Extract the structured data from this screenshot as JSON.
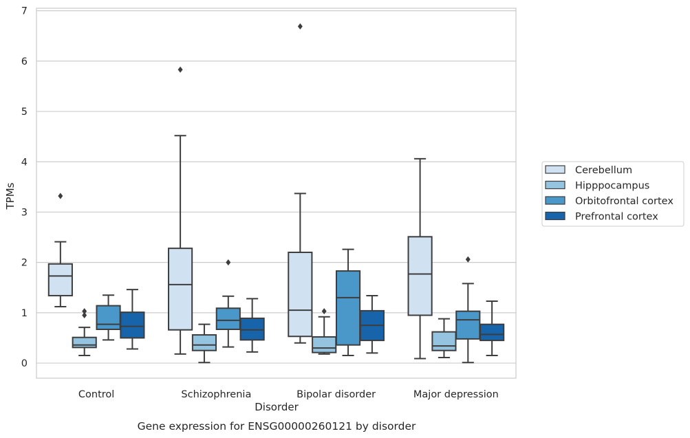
{
  "chart_data": {
    "type": "box",
    "title": "",
    "caption": "Gene expression for ENSG00000260121 by disorder",
    "xlabel": "Disorder",
    "ylabel": "TPMs",
    "ylim": [
      -0.3,
      7.05
    ],
    "yticks": [
      0,
      1,
      2,
      3,
      4,
      5,
      6,
      7
    ],
    "grid": "horizontal",
    "legend_position": "right",
    "categories": [
      "Control",
      "Schizophrenia",
      "Bipolar disorder",
      "Major depression"
    ],
    "series": [
      {
        "name": "Cerebellum",
        "color": "#d0e1f2",
        "boxes": [
          {
            "whislo": 1.12,
            "q1": 1.34,
            "med": 1.73,
            "q3": 1.97,
            "whishi": 2.41,
            "fliers": [
              3.32
            ]
          },
          {
            "whislo": 0.18,
            "q1": 0.66,
            "med": 1.56,
            "q3": 2.28,
            "whishi": 4.52,
            "fliers": [
              5.83
            ]
          },
          {
            "whislo": 0.4,
            "q1": 0.53,
            "med": 1.05,
            "q3": 2.2,
            "whishi": 3.37,
            "fliers": [
              6.69
            ]
          },
          {
            "whislo": 0.09,
            "q1": 0.95,
            "med": 1.77,
            "q3": 2.51,
            "whishi": 4.06,
            "fliers": []
          }
        ]
      },
      {
        "name": "Hipppocampus",
        "color": "#94c4df",
        "boxes": [
          {
            "whislo": 0.15,
            "q1": 0.31,
            "med": 0.36,
            "q3": 0.51,
            "whishi": 0.71,
            "fliers": [
              0.95,
              1.03
            ]
          },
          {
            "whislo": 0.01,
            "q1": 0.25,
            "med": 0.36,
            "q3": 0.56,
            "whishi": 0.77,
            "fliers": []
          },
          {
            "whislo": 0.18,
            "q1": 0.21,
            "med": 0.3,
            "q3": 0.52,
            "whishi": 0.92,
            "fliers": [
              1.03
            ]
          },
          {
            "whislo": 0.11,
            "q1": 0.25,
            "med": 0.34,
            "q3": 0.62,
            "whishi": 0.88,
            "fliers": []
          }
        ]
      },
      {
        "name": "Orbitofrontal cortex",
        "color": "#4a98c9",
        "boxes": [
          {
            "whislo": 0.46,
            "q1": 0.67,
            "med": 0.77,
            "q3": 1.14,
            "whishi": 1.35,
            "fliers": []
          },
          {
            "whislo": 0.32,
            "q1": 0.67,
            "med": 0.85,
            "q3": 1.09,
            "whishi": 1.33,
            "fliers": [
              2.0
            ]
          },
          {
            "whislo": 0.15,
            "q1": 0.36,
            "med": 1.3,
            "q3": 1.83,
            "whishi": 2.26,
            "fliers": []
          },
          {
            "whislo": 0.01,
            "q1": 0.48,
            "med": 0.86,
            "q3": 1.03,
            "whishi": 1.58,
            "fliers": [
              2.06
            ]
          }
        ]
      },
      {
        "name": "Prefrontal cortex",
        "color": "#1764ab",
        "boxes": [
          {
            "whislo": 0.28,
            "q1": 0.5,
            "med": 0.73,
            "q3": 1.01,
            "whishi": 1.46,
            "fliers": []
          },
          {
            "whislo": 0.22,
            "q1": 0.46,
            "med": 0.66,
            "q3": 0.89,
            "whishi": 1.28,
            "fliers": []
          },
          {
            "whislo": 0.2,
            "q1": 0.45,
            "med": 0.75,
            "q3": 1.04,
            "whishi": 1.34,
            "fliers": []
          },
          {
            "whislo": 0.15,
            "q1": 0.45,
            "med": 0.57,
            "q3": 0.77,
            "whishi": 1.23,
            "fliers": []
          }
        ]
      }
    ]
  }
}
